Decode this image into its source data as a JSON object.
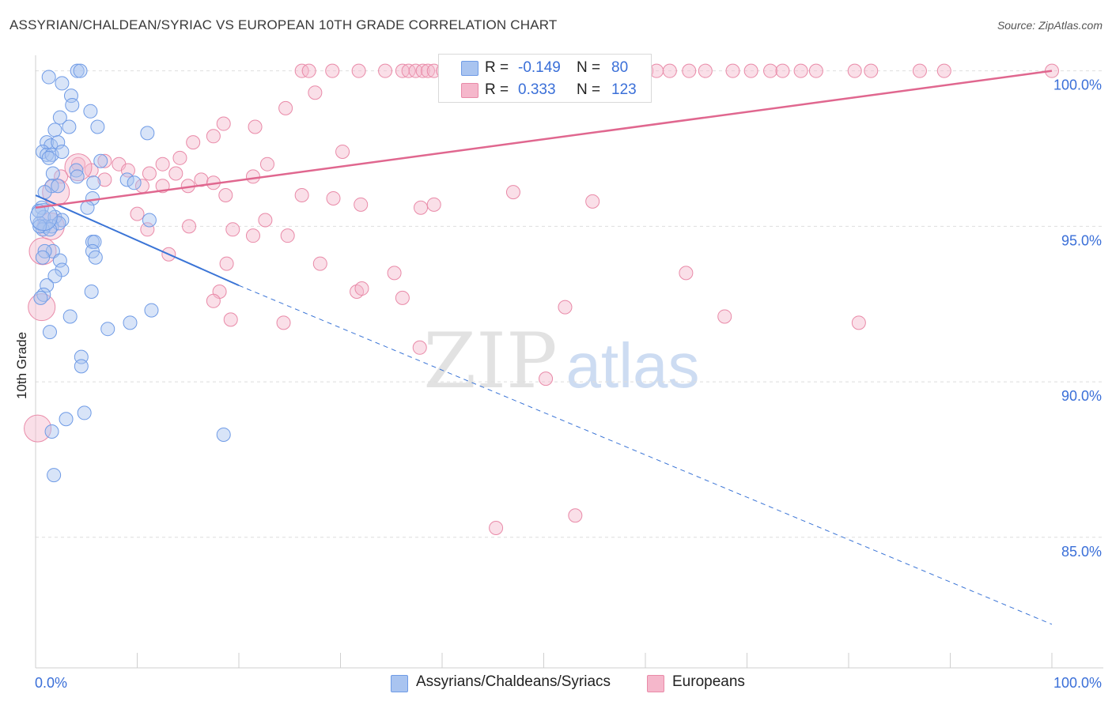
{
  "title": "ASSYRIAN/CHALDEAN/SYRIAC VS EUROPEAN 10TH GRADE CORRELATION CHART",
  "source": "Source: ZipAtlas.com",
  "watermark": {
    "zip": "ZIP",
    "atlas": "atlas"
  },
  "stats": [
    {
      "r_label": "R =",
      "r_value": "-0.149",
      "n_label": "N =",
      "n_value": "80",
      "color": "#a9c4f0"
    },
    {
      "r_label": "R =",
      "r_value": "0.333",
      "n_label": "N =",
      "n_value": "123",
      "color": "#f5b7cb"
    }
  ],
  "legend": [
    {
      "label": "Assyrians/Chaldeans/Syriacs",
      "color": "#a9c4f0"
    },
    {
      "label": "Europeans",
      "color": "#f5b7cb"
    }
  ],
  "chart_data": {
    "type": "scatter",
    "title": "ASSYRIAN/CHALDEAN/SYRIAC VS EUROPEAN 10TH GRADE CORRELATION CHART",
    "xlabel": "",
    "ylabel": "10th Grade",
    "xlim": [
      0,
      100
    ],
    "ylim": [
      80.8,
      100.5
    ],
    "x_tick_labels": [
      "0.0%",
      "100.0%"
    ],
    "y_ticks": [
      100,
      95,
      90,
      85
    ],
    "y_tick_labels": [
      "100.0%",
      "95.0%",
      "90.0%",
      "85.0%"
    ],
    "grid": true,
    "series": [
      {
        "name": "Assyrians/Chaldeans/Syriacs",
        "color": "#6f9be6",
        "fill": "rgba(169,196,240,0.45)",
        "trend": {
          "x": [
            0,
            20
          ],
          "y": [
            96.0,
            93.1
          ],
          "dashed_extension_to": [
            100,
            82.2
          ],
          "color": "#3a74d6"
        },
        "points": [
          [
            1.3,
            99.8
          ],
          [
            4.1,
            100.0
          ],
          [
            4.4,
            100.0
          ],
          [
            2.6,
            99.6
          ],
          [
            3.5,
            99.2
          ],
          [
            5.4,
            98.7
          ],
          [
            2.4,
            98.5
          ],
          [
            3.6,
            98.9
          ],
          [
            1.9,
            98.1
          ],
          [
            3.3,
            98.2
          ],
          [
            6.1,
            98.2
          ],
          [
            1.1,
            97.7
          ],
          [
            1.5,
            97.6
          ],
          [
            2.2,
            97.7
          ],
          [
            0.7,
            97.4
          ],
          [
            1.1,
            97.3
          ],
          [
            1.6,
            97.3
          ],
          [
            2.6,
            97.4
          ],
          [
            6.4,
            97.1
          ],
          [
            1.3,
            97.2
          ],
          [
            4.0,
            96.8
          ],
          [
            1.7,
            96.7
          ],
          [
            4.1,
            96.6
          ],
          [
            5.7,
            96.4
          ],
          [
            9.0,
            96.5
          ],
          [
            9.7,
            96.4
          ],
          [
            1.6,
            96.3
          ],
          [
            0.9,
            96.1
          ],
          [
            2.2,
            96.3
          ],
          [
            5.6,
            95.9
          ],
          [
            11.0,
            98.0
          ],
          [
            0.6,
            95.6
          ],
          [
            5.1,
            95.6
          ],
          [
            0.8,
            95.3
          ],
          [
            1.9,
            95.3
          ],
          [
            2.6,
            95.2
          ],
          [
            11.2,
            95.2
          ],
          [
            0.4,
            95.1
          ],
          [
            0.9,
            95.0
          ],
          [
            1.6,
            95.0
          ],
          [
            2.3,
            95.1
          ],
          [
            0.7,
            94.9
          ],
          [
            1.4,
            94.9
          ],
          [
            5.6,
            94.5
          ],
          [
            5.8,
            94.5
          ],
          [
            1.7,
            94.2
          ],
          [
            0.9,
            94.2
          ],
          [
            5.6,
            94.2
          ],
          [
            5.9,
            94.0
          ],
          [
            0.7,
            94.0
          ],
          [
            2.4,
            93.9
          ],
          [
            2.6,
            93.6
          ],
          [
            1.9,
            93.4
          ],
          [
            1.1,
            93.1
          ],
          [
            0.8,
            92.8
          ],
          [
            0.5,
            92.7
          ],
          [
            5.5,
            92.9
          ],
          [
            11.4,
            92.3
          ],
          [
            3.4,
            92.1
          ],
          [
            9.3,
            91.9
          ],
          [
            7.1,
            91.7
          ],
          [
            1.4,
            91.6
          ],
          [
            4.5,
            90.8
          ],
          [
            4.5,
            90.5
          ],
          [
            4.8,
            89.0
          ],
          [
            3.0,
            88.8
          ],
          [
            1.6,
            88.4
          ],
          [
            18.5,
            88.3
          ],
          [
            1.8,
            87.0
          ],
          [
            0.3,
            95.5
          ],
          [
            0.4,
            95.0
          ]
        ],
        "big_points": [
          [
            0.8,
            95.3
          ]
        ]
      },
      {
        "name": "Europeans",
        "color": "#e98aa8",
        "fill": "rgba(245,183,203,0.45)",
        "trend": {
          "x": [
            0,
            100
          ],
          "y": [
            95.6,
            100.0
          ],
          "color": "#e0678f"
        },
        "points": [
          [
            26.2,
            100.0
          ],
          [
            26.9,
            100.0
          ],
          [
            29.2,
            100.0
          ],
          [
            31.8,
            100.0
          ],
          [
            34.4,
            100.0
          ],
          [
            36.1,
            100.0
          ],
          [
            36.7,
            100.0
          ],
          [
            37.4,
            100.0
          ],
          [
            38.1,
            100.0
          ],
          [
            38.6,
            100.0
          ],
          [
            39.2,
            100.0
          ],
          [
            40.1,
            100.0
          ],
          [
            40.6,
            100.0
          ],
          [
            41.7,
            100.0
          ],
          [
            42.4,
            100.0
          ],
          [
            43.0,
            100.0
          ],
          [
            44.1,
            100.0
          ],
          [
            44.8,
            100.0
          ],
          [
            45.3,
            100.0
          ],
          [
            45.9,
            100.0
          ],
          [
            46.6,
            100.0
          ],
          [
            47.1,
            100.0
          ],
          [
            48.0,
            100.0
          ],
          [
            48.7,
            100.0
          ],
          [
            49.3,
            100.0
          ],
          [
            50.4,
            100.0
          ],
          [
            51.2,
            100.0
          ],
          [
            52.1,
            100.0
          ],
          [
            53.2,
            100.0
          ],
          [
            54.4,
            100.0
          ],
          [
            55.2,
            100.0
          ],
          [
            57.6,
            100.0
          ],
          [
            58.2,
            100.0
          ],
          [
            59.0,
            100.0
          ],
          [
            60.1,
            100.0
          ],
          [
            61.1,
            100.0
          ],
          [
            62.4,
            100.0
          ],
          [
            64.3,
            100.0
          ],
          [
            65.9,
            100.0
          ],
          [
            68.6,
            100.0
          ],
          [
            70.4,
            100.0
          ],
          [
            72.3,
            100.0
          ],
          [
            73.5,
            100.0
          ],
          [
            75.3,
            100.0
          ],
          [
            76.8,
            100.0
          ],
          [
            80.6,
            100.0
          ],
          [
            82.2,
            100.0
          ],
          [
            87.0,
            100.0
          ],
          [
            89.4,
            100.0
          ],
          [
            100.0,
            100.0
          ],
          [
            27.5,
            99.3
          ],
          [
            24.6,
            98.8
          ],
          [
            21.6,
            98.2
          ],
          [
            17.5,
            97.9
          ],
          [
            15.5,
            97.7
          ],
          [
            30.2,
            97.4
          ],
          [
            18.5,
            98.3
          ],
          [
            12.5,
            97.0
          ],
          [
            8.2,
            97.0
          ],
          [
            6.8,
            97.1
          ],
          [
            14.2,
            97.2
          ],
          [
            4.2,
            97.0
          ],
          [
            5.5,
            96.8
          ],
          [
            9.1,
            96.8
          ],
          [
            11.2,
            96.7
          ],
          [
            13.8,
            96.7
          ],
          [
            16.3,
            96.5
          ],
          [
            17.5,
            96.4
          ],
          [
            22.8,
            97.0
          ],
          [
            21.4,
            96.6
          ],
          [
            6.8,
            96.5
          ],
          [
            10.5,
            96.3
          ],
          [
            12.5,
            96.3
          ],
          [
            15.0,
            96.3
          ],
          [
            18.7,
            96.0
          ],
          [
            26.2,
            96.0
          ],
          [
            29.3,
            95.9
          ],
          [
            32.0,
            95.7
          ],
          [
            37.9,
            95.6
          ],
          [
            39.2,
            95.7
          ],
          [
            47.0,
            96.1
          ],
          [
            54.8,
            95.8
          ],
          [
            10.0,
            95.4
          ],
          [
            22.6,
            95.2
          ],
          [
            15.1,
            95.0
          ],
          [
            19.4,
            94.9
          ],
          [
            21.4,
            94.7
          ],
          [
            24.8,
            94.7
          ],
          [
            11.0,
            94.9
          ],
          [
            13.1,
            94.1
          ],
          [
            18.8,
            93.8
          ],
          [
            28.0,
            93.8
          ],
          [
            35.3,
            93.5
          ],
          [
            64.0,
            93.5
          ],
          [
            18.1,
            92.9
          ],
          [
            31.6,
            92.9
          ],
          [
            32.1,
            93.0
          ],
          [
            36.1,
            92.7
          ],
          [
            17.5,
            92.6
          ],
          [
            52.1,
            92.4
          ],
          [
            67.8,
            92.1
          ],
          [
            19.2,
            92.0
          ],
          [
            24.4,
            91.9
          ],
          [
            81.0,
            91.9
          ],
          [
            37.8,
            91.1
          ],
          [
            50.2,
            90.1
          ],
          [
            45.3,
            85.3
          ],
          [
            53.1,
            85.7
          ],
          [
            2.5,
            96.6
          ]
        ],
        "big_points": [
          [
            0.6,
            92.4
          ],
          [
            0.2,
            88.5
          ],
          [
            2.0,
            96.1
          ],
          [
            1.5,
            95.0
          ],
          [
            4.2,
            96.9
          ],
          [
            0.7,
            94.2
          ]
        ]
      }
    ]
  }
}
